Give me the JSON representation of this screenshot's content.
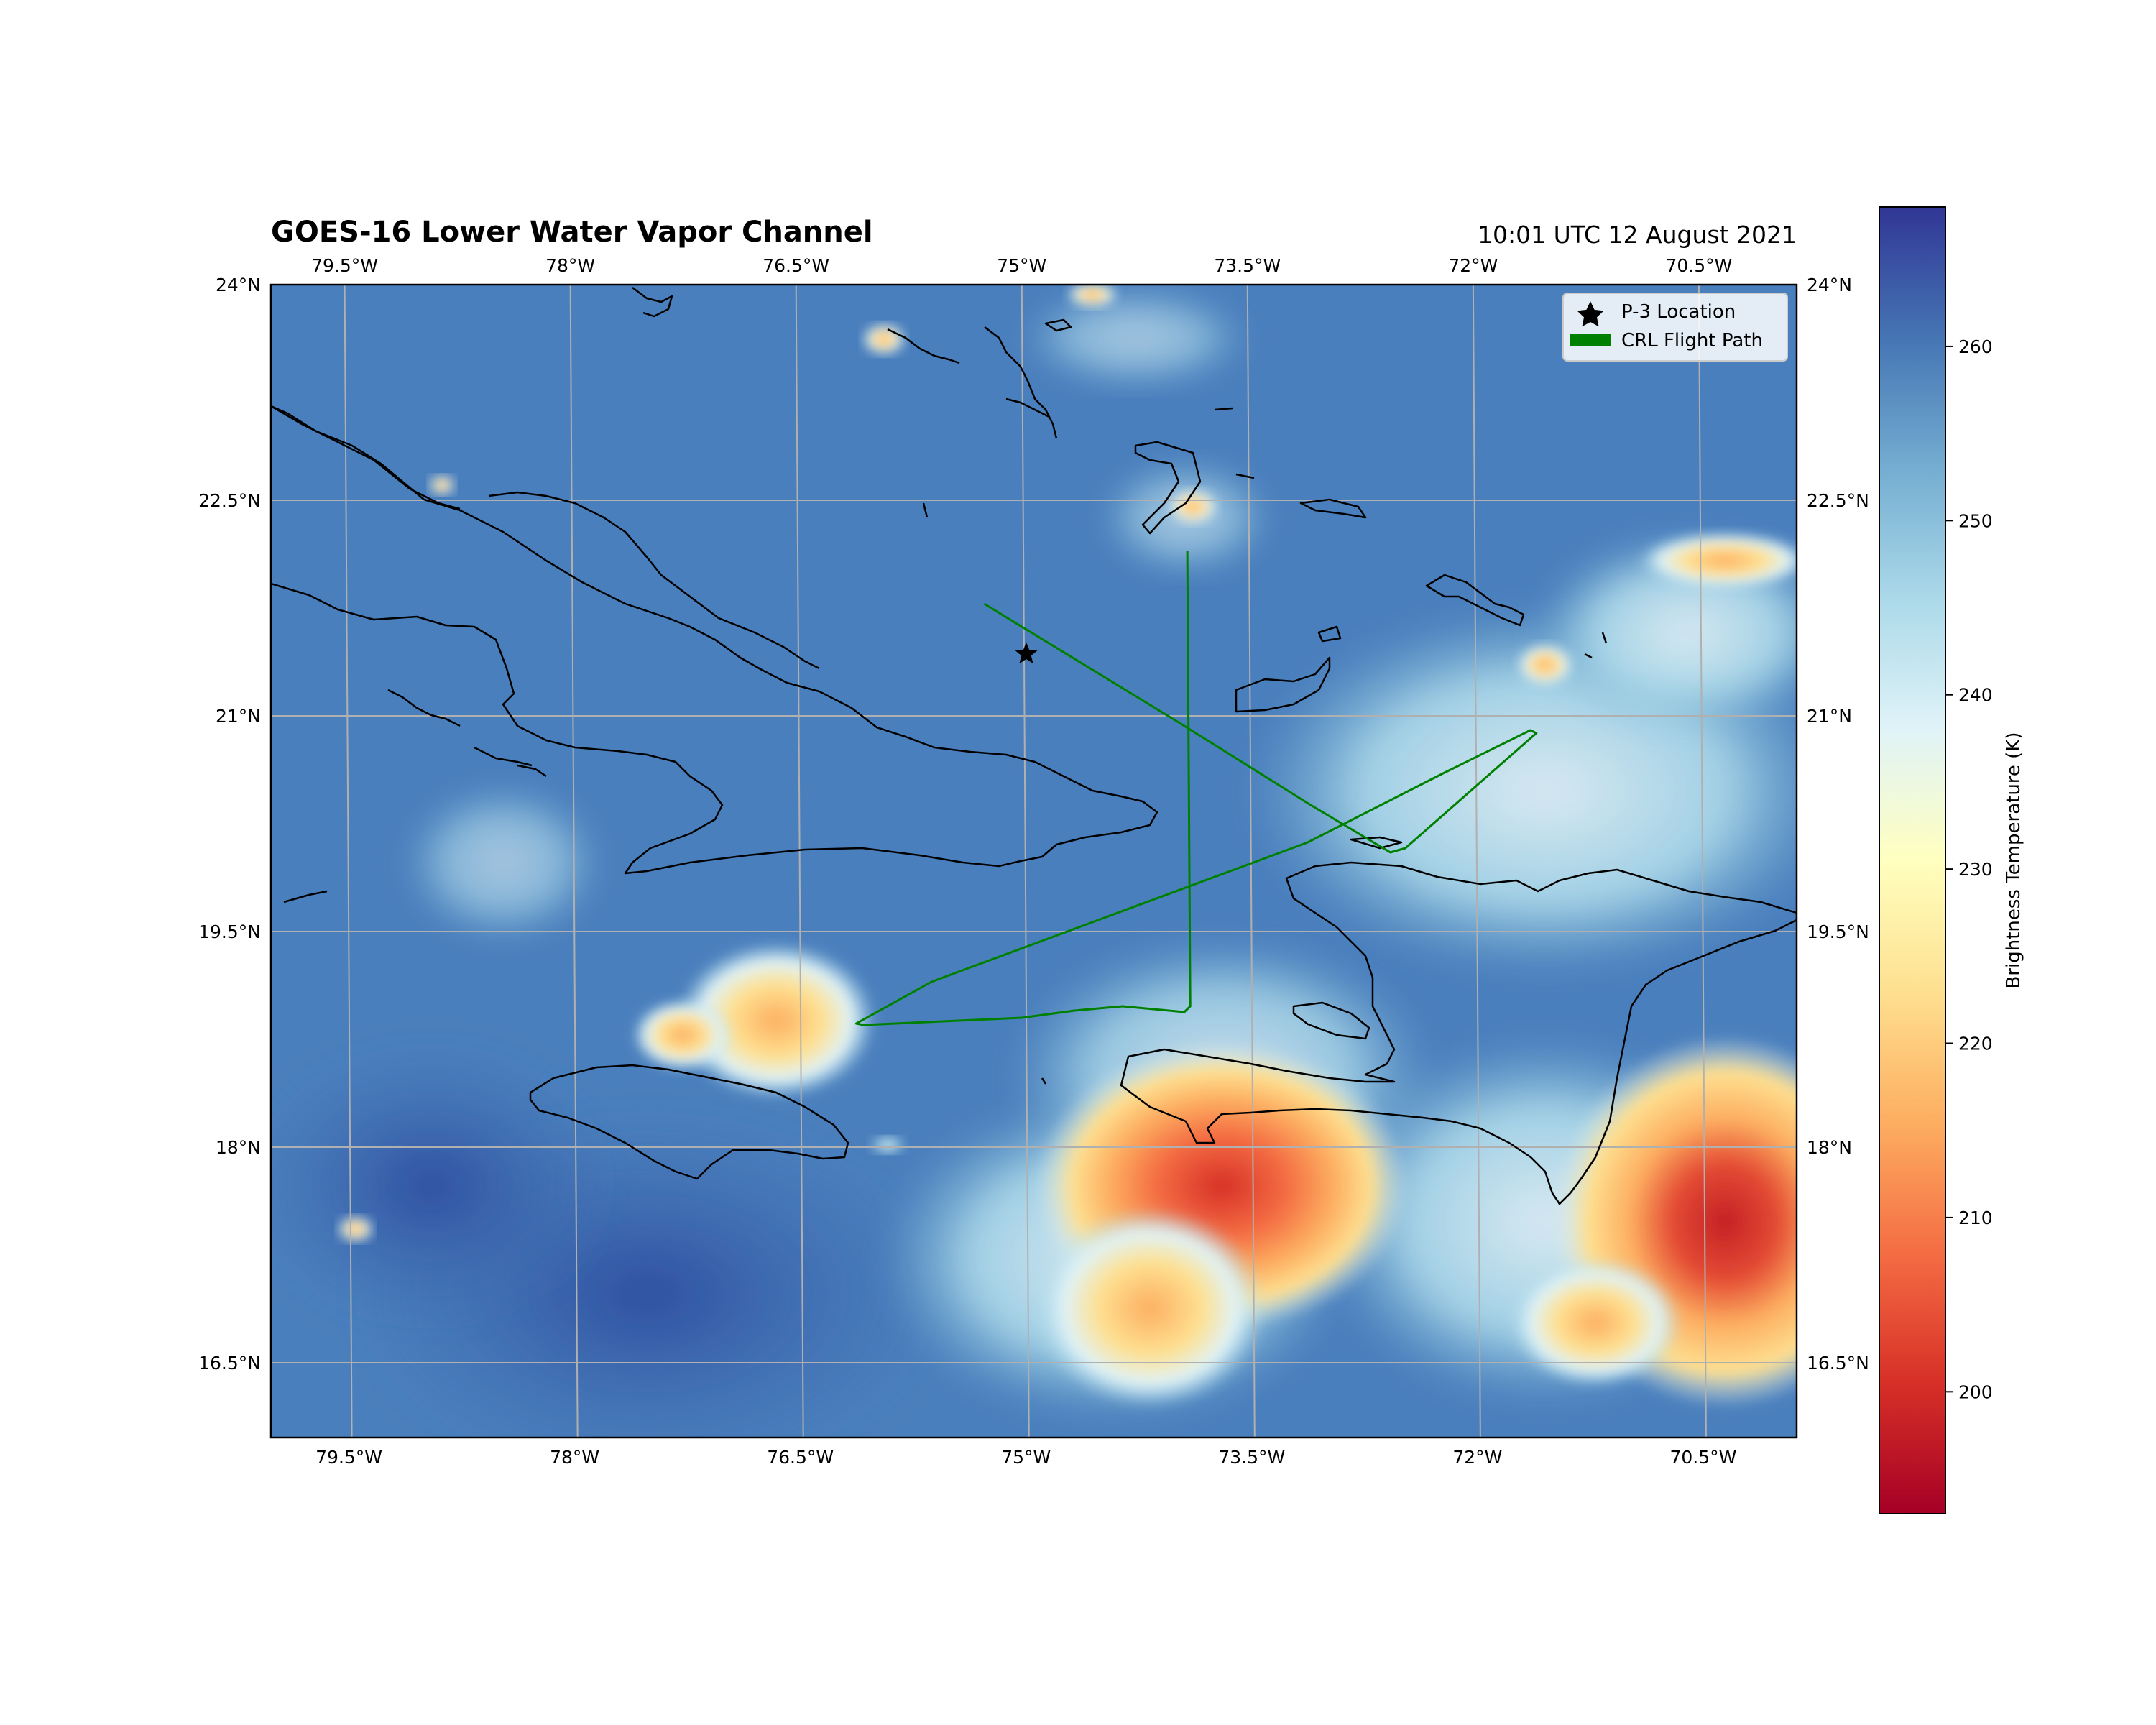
{
  "header": {
    "title": "GOES-16 Lower Water Vapor Channel",
    "timestamp": "10:01 UTC 12 August 2021"
  },
  "map": {
    "extent": {
      "lon_min": -79.99,
      "lon_max": -69.85,
      "lat_min": 15.98,
      "lat_max": 24.0
    },
    "lon_ticks": [
      {
        "value": -79.5,
        "label": "79.5°W"
      },
      {
        "value": -78.0,
        "label": "78°W"
      },
      {
        "value": -76.5,
        "label": "76.5°W"
      },
      {
        "value": -75.0,
        "label": "75°W"
      },
      {
        "value": -73.5,
        "label": "73.5°W"
      },
      {
        "value": -72.0,
        "label": "72°W"
      },
      {
        "value": -70.5,
        "label": "70.5°W"
      }
    ],
    "lat_ticks": [
      {
        "value": 24.0,
        "label": "24°N"
      },
      {
        "value": 22.5,
        "label": "22.5°N"
      },
      {
        "value": 21.0,
        "label": "21°N"
      },
      {
        "value": 19.5,
        "label": "19.5°N"
      },
      {
        "value": 18.0,
        "label": "18°N"
      },
      {
        "value": 16.5,
        "label": "16.5°N"
      }
    ],
    "grid": true
  },
  "legend": {
    "placement": "top-right",
    "p3_label": "P-3 Location",
    "crl_label": "CRL Flight Path"
  },
  "colors": {
    "flight_path": "#008000",
    "coastline": "#000000",
    "grid": "#b0b0b0"
  },
  "colorbar": {
    "label": "Brightness Temperature (K)",
    "range": [
      193,
      268
    ],
    "colormap": "RdYlBu",
    "ticks": [
      {
        "value": 200,
        "label": "200"
      },
      {
        "value": 210,
        "label": "210"
      },
      {
        "value": 220,
        "label": "220"
      },
      {
        "value": 230,
        "label": "230"
      },
      {
        "value": 240,
        "label": "240"
      },
      {
        "value": 250,
        "label": "250"
      },
      {
        "value": 260,
        "label": "260"
      }
    ]
  },
  "p3_location": {
    "lon": -74.97,
    "lat": 21.43
  },
  "flight_path": [
    [
      -75.25,
      21.78
    ],
    [
      -73.95,
      20.95
    ],
    [
      -73.08,
      20.38
    ],
    [
      -72.55,
      20.05
    ],
    [
      -72.45,
      20.08
    ],
    [
      -71.58,
      20.88
    ],
    [
      -71.62,
      20.9
    ],
    [
      -72.2,
      20.6
    ],
    [
      -73.1,
      20.12
    ],
    [
      -75.6,
      19.15
    ],
    [
      -76.1,
      18.86
    ],
    [
      -76.05,
      18.85
    ],
    [
      -75.0,
      18.9
    ],
    [
      -74.65,
      18.95
    ],
    [
      -74.33,
      18.98
    ],
    [
      -73.92,
      18.94
    ],
    [
      -73.88,
      18.98
    ],
    [
      -73.9,
      22.15
    ]
  ]
}
